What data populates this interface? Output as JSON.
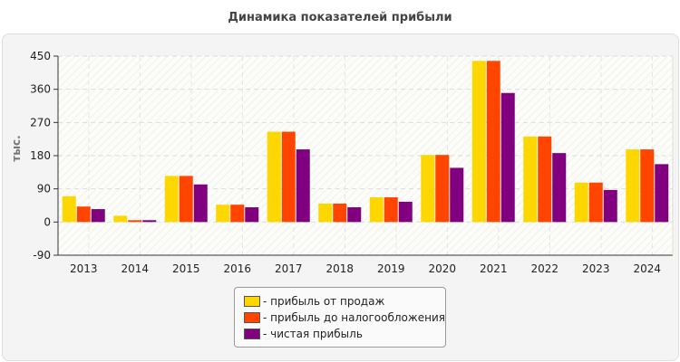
{
  "chart_data": {
    "type": "bar",
    "title": "Динамика показателей прибыли",
    "ylabel": "тыс.",
    "xlabel": "",
    "ylim": [
      -90,
      450
    ],
    "yticks": [
      -90,
      0,
      90,
      180,
      270,
      360,
      450
    ],
    "grid": true,
    "legend_position": "bottom",
    "categories": [
      "2013",
      "2014",
      "2015",
      "2016",
      "2017",
      "2018",
      "2019",
      "2020",
      "2021",
      "2022",
      "2023",
      "2024"
    ],
    "series": [
      {
        "name": "- прибыль от продаж",
        "color": "#ffd700",
        "values": [
          70,
          17,
          125,
          47,
          245,
          50,
          67,
          182,
          437,
          232,
          107,
          197
        ]
      },
      {
        "name": "- прибыль до налогообложения",
        "color": "#ff4500",
        "values": [
          42,
          5,
          125,
          47,
          245,
          50,
          67,
          182,
          437,
          232,
          107,
          197
        ]
      },
      {
        "name": "- чистая прибыль",
        "color": "#800080",
        "values": [
          35,
          5,
          102,
          40,
          197,
          40,
          55,
          147,
          350,
          187,
          87,
          157
        ]
      }
    ]
  }
}
